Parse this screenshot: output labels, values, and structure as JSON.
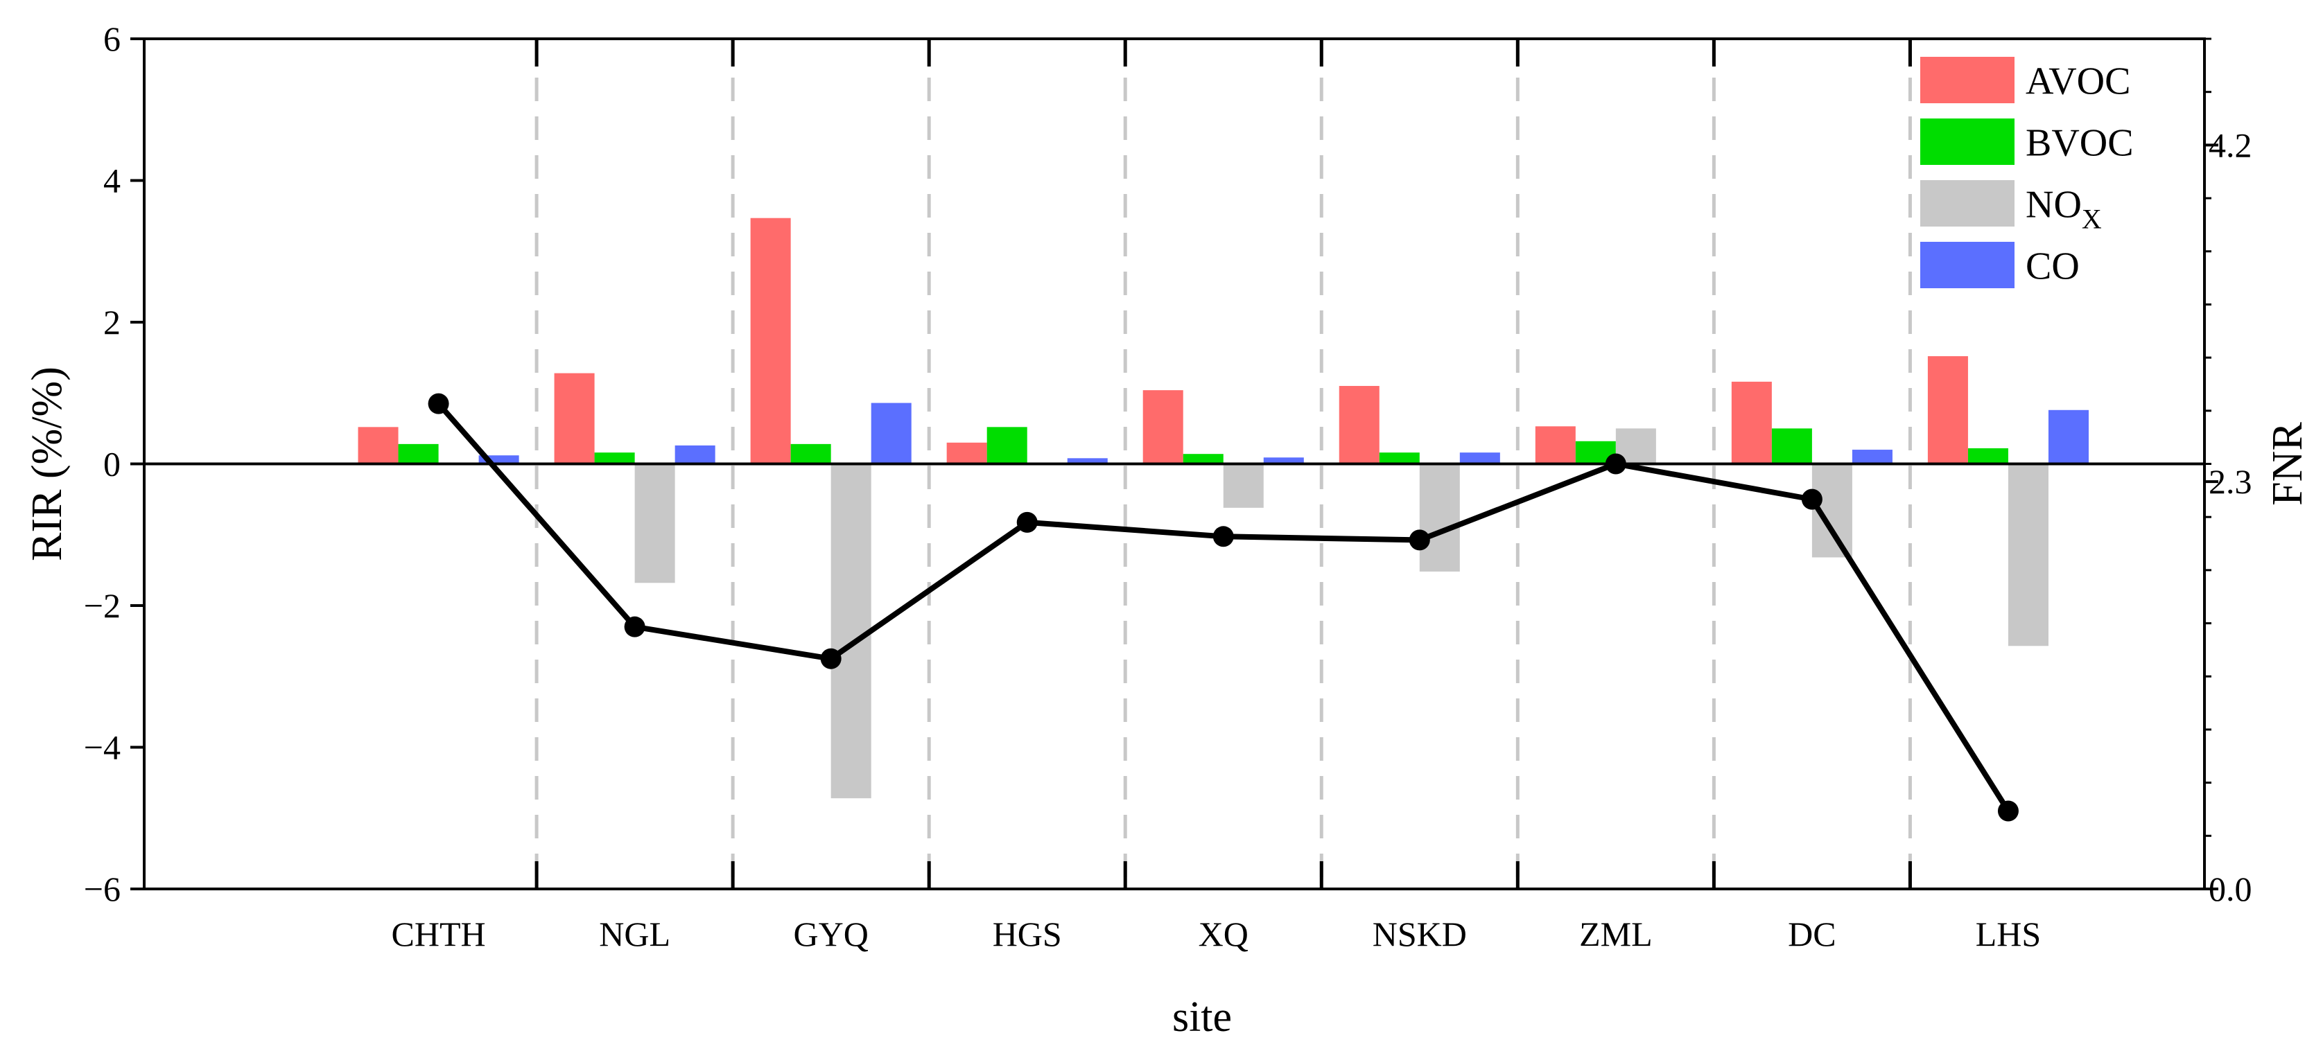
{
  "chart_data": {
    "type": "bar",
    "title": "",
    "xlabel": "site",
    "ylabel": "RIR (%/%)",
    "y2label": "FNR",
    "categories": [
      "CHTH",
      "NGL",
      "GYQ",
      "HGS",
      "XQ",
      "NSKD",
      "ZML",
      "DC",
      "LHS"
    ],
    "ylim": [
      -6,
      6
    ],
    "yticks": [
      6,
      4,
      2,
      0,
      -2,
      -4,
      -6
    ],
    "ytick_labels": [
      "6",
      "4",
      "2",
      "0",
      "−2",
      "−4",
      "−6"
    ],
    "y2lim": [
      0,
      4.8
    ],
    "y2ticks": [
      4.2,
      2.3,
      0.0
    ],
    "y2tick_labels": [
      "4.2",
      "2.3",
      "0.0"
    ],
    "legend_position": "top-right",
    "series": [
      {
        "name": "AVOC",
        "legend_label": "AVOC",
        "color": "#ff6b6b",
        "values": [
          0.52,
          1.28,
          3.47,
          0.3,
          1.04,
          1.1,
          0.53,
          1.16,
          1.52
        ]
      },
      {
        "name": "BVOC",
        "legend_label": "BVOC",
        "color": "#00dd00",
        "values": [
          0.28,
          0.16,
          0.28,
          0.52,
          0.14,
          0.16,
          0.32,
          0.5,
          0.22
        ]
      },
      {
        "name": "NOX",
        "legend_label": "NO",
        "legend_sub": "X",
        "color": "#c8c8c8",
        "values": [
          0.0,
          -1.68,
          -4.72,
          0.0,
          -0.62,
          -1.52,
          0.5,
          -1.32,
          -2.57
        ]
      },
      {
        "name": "CO",
        "legend_label": "CO",
        "color": "#5b6fff",
        "values": [
          0.12,
          0.26,
          0.86,
          0.08,
          0.09,
          0.16,
          0.0,
          0.2,
          0.76
        ]
      }
    ],
    "line": {
      "name": "FNR",
      "axis": "right",
      "color": "#000000",
      "values": [
        2.74,
        1.48,
        1.3,
        2.07,
        1.99,
        1.97,
        2.4,
        2.2,
        0.44
      ]
    }
  }
}
